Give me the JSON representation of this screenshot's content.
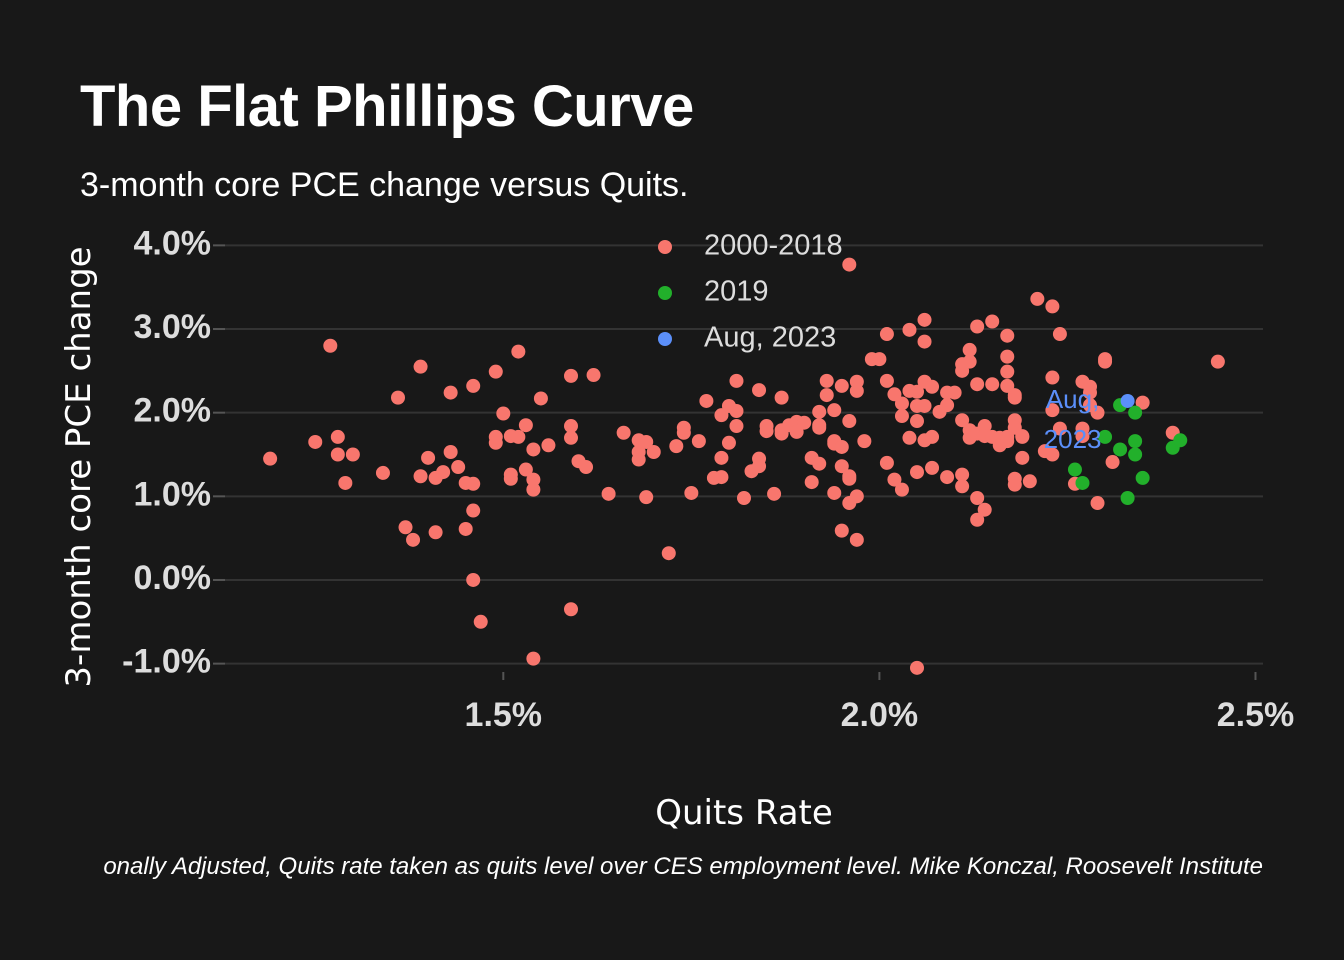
{
  "chart_data": {
    "type": "scatter",
    "title": "The Flat Phillips Curve",
    "subtitle": "3-month core PCE change versus Quits.",
    "x_label": "Quits Rate",
    "y_label": "3-month core PCE change",
    "caption": "onally Adjusted, Quits rate taken as quits level over CES employment level. Mike Konczal, Roosevelt Institute",
    "annotation": {
      "text": "Aug, 2023",
      "x": 2.33,
      "y": 2.14,
      "color": "#5b8ff9"
    },
    "xlim": [
      1.13,
      2.51
    ],
    "ylim": [
      -1.1,
      4.1
    ],
    "xticks": [
      {
        "value": 1.5,
        "label": "1.5%"
      },
      {
        "value": 2.0,
        "label": "2.0%"
      },
      {
        "value": 2.5,
        "label": "2.5%"
      }
    ],
    "yticks": [
      {
        "value": -1,
        "label": "-1.0%"
      },
      {
        "value": 0,
        "label": "0.0%"
      },
      {
        "value": 1,
        "label": "1.0%"
      },
      {
        "value": 2,
        "label": "2.0%"
      },
      {
        "value": 3,
        "label": "3.0%"
      },
      {
        "value": 4,
        "label": "4.0%"
      }
    ],
    "grid": true,
    "legend": "top",
    "series": [
      {
        "name": "2000-2018",
        "color": "#f8766d",
        "x": [
          1.19,
          1.25,
          1.27,
          1.28,
          1.28,
          1.3,
          1.29,
          1.34,
          1.36,
          1.37,
          1.38,
          1.39,
          1.39,
          1.4,
          1.41,
          1.41,
          1.42,
          1.43,
          1.43,
          1.44,
          1.45,
          1.45,
          1.46,
          1.46,
          1.46,
          1.46,
          1.47,
          1.49,
          1.49,
          1.49,
          1.5,
          1.51,
          1.51,
          1.51,
          1.52,
          1.52,
          1.53,
          1.53,
          1.54,
          1.54,
          1.54,
          1.55,
          1.54,
          1.56,
          1.59,
          1.59,
          1.59,
          1.59,
          1.6,
          1.61,
          1.62,
          1.64,
          1.66,
          1.68,
          1.68,
          1.68,
          1.69,
          1.69,
          1.7,
          1.72,
          1.73,
          1.74,
          1.74,
          1.75,
          1.76,
          1.77,
          1.78,
          1.79,
          1.79,
          1.79,
          1.8,
          1.8,
          1.81,
          1.81,
          1.81,
          1.82,
          1.83,
          1.84,
          1.84,
          1.84,
          1.85,
          1.85,
          1.86,
          1.87,
          1.87,
          1.87,
          1.88,
          1.89,
          1.89,
          1.9,
          1.91,
          1.91,
          1.92,
          1.92,
          1.92,
          1.92,
          1.93,
          1.93,
          1.94,
          1.94,
          1.94,
          1.94,
          1.95,
          1.95,
          1.95,
          1.95,
          1.96,
          1.96,
          1.96,
          1.96,
          1.96,
          1.97,
          1.97,
          1.97,
          1.97,
          1.98,
          1.99,
          2.0,
          2.01,
          2.01,
          2.01,
          2.02,
          2.02,
          2.03,
          2.03,
          2.03,
          2.04,
          2.04,
          2.04,
          2.05,
          2.05,
          2.05,
          2.05,
          2.05,
          2.06,
          2.06,
          2.06,
          2.06,
          2.06,
          2.07,
          2.07,
          2.07,
          2.08,
          2.09,
          2.09,
          2.09,
          2.1,
          2.11,
          2.11,
          2.11,
          2.11,
          2.11,
          2.12,
          2.12,
          2.12,
          2.12,
          2.13,
          2.13,
          2.13,
          2.13,
          2.13,
          2.14,
          2.14,
          2.14,
          2.15,
          2.15,
          2.15,
          2.16,
          2.16,
          2.17,
          2.17,
          2.17,
          2.17,
          2.17,
          2.17,
          2.18,
          2.18,
          2.18,
          2.18,
          2.18,
          2.18,
          2.19,
          2.19,
          2.19,
          2.2,
          2.21,
          2.22,
          2.23,
          2.23,
          2.23,
          2.24,
          2.24,
          2.26,
          2.27,
          2.27,
          2.27,
          2.28,
          2.28,
          2.28,
          2.29,
          2.29,
          2.3,
          2.3,
          2.31,
          2.35,
          2.39,
          2.45,
          2.23
        ],
        "values": [
          1.45,
          1.65,
          2.8,
          1.71,
          1.5,
          1.5,
          1.16,
          1.28,
          2.18,
          0.63,
          0.48,
          2.55,
          1.24,
          1.46,
          0.57,
          1.22,
          1.29,
          2.24,
          1.53,
          1.35,
          1.16,
          0.61,
          1.15,
          2.32,
          0.83,
          0.0,
          -0.5,
          2.49,
          1.71,
          1.64,
          1.99,
          1.26,
          1.21,
          1.72,
          1.71,
          2.73,
          1.85,
          1.32,
          1.08,
          1.56,
          1.2,
          2.17,
          -0.94,
          1.61,
          -0.35,
          2.44,
          1.84,
          1.7,
          1.42,
          1.35,
          2.45,
          1.03,
          1.76,
          1.53,
          1.44,
          1.67,
          0.99,
          1.65,
          1.53,
          0.32,
          1.6,
          1.82,
          1.76,
          1.04,
          1.66,
          2.14,
          1.22,
          1.23,
          1.46,
          1.97,
          2.08,
          1.64,
          1.84,
          2.38,
          2.02,
          0.98,
          1.3,
          1.36,
          1.45,
          2.27,
          1.84,
          1.78,
          1.03,
          1.75,
          2.18,
          1.79,
          1.85,
          1.89,
          1.77,
          1.88,
          1.46,
          1.17,
          1.39,
          1.85,
          1.82,
          2.01,
          2.38,
          2.21,
          1.63,
          1.66,
          1.04,
          2.03,
          0.59,
          2.32,
          1.36,
          1.59,
          3.77,
          0.92,
          1.24,
          1.21,
          1.9,
          2.26,
          0.48,
          2.37,
          1.0,
          1.66,
          2.64,
          2.64,
          1.4,
          2.38,
          2.94,
          2.22,
          1.2,
          1.08,
          1.96,
          2.11,
          1.7,
          2.26,
          2.99,
          2.08,
          2.25,
          -1.05,
          1.9,
          1.29,
          2.37,
          1.67,
          2.85,
          2.08,
          3.11,
          2.31,
          1.34,
          1.71,
          2.01,
          1.23,
          2.24,
          2.09,
          2.24,
          2.5,
          2.58,
          1.91,
          1.26,
          1.12,
          1.79,
          2.75,
          2.61,
          1.7,
          0.98,
          0.72,
          2.34,
          3.03,
          1.75,
          0.84,
          1.84,
          1.72,
          3.09,
          2.34,
          1.71,
          1.7,
          1.61,
          1.66,
          1.71,
          2.32,
          2.49,
          2.67,
          2.92,
          2.21,
          1.21,
          1.14,
          2.18,
          1.91,
          1.82,
          1.72,
          1.71,
          1.46,
          1.18,
          3.36,
          1.54,
          3.27,
          2.42,
          2.03,
          2.94,
          1.81,
          1.15,
          1.81,
          2.37,
          1.72,
          2.24,
          2.31,
          2.09,
          2.0,
          0.92,
          2.64,
          2.61,
          1.41,
          2.12,
          1.76,
          2.61,
          1.5
        ]
      },
      {
        "name": "2019",
        "color": "#22b02b",
        "x": [
          2.26,
          2.27,
          2.3,
          2.32,
          2.32,
          2.33,
          2.34,
          2.34,
          2.34,
          2.35,
          2.39,
          2.4
        ],
        "values": [
          1.32,
          1.16,
          1.71,
          2.09,
          1.56,
          0.98,
          1.5,
          2.0,
          1.66,
          1.22,
          1.58,
          1.67
        ]
      },
      {
        "name": "Aug, 2023",
        "color": "#5b8ff9",
        "x": [
          2.33
        ],
        "values": [
          2.14
        ]
      }
    ]
  }
}
